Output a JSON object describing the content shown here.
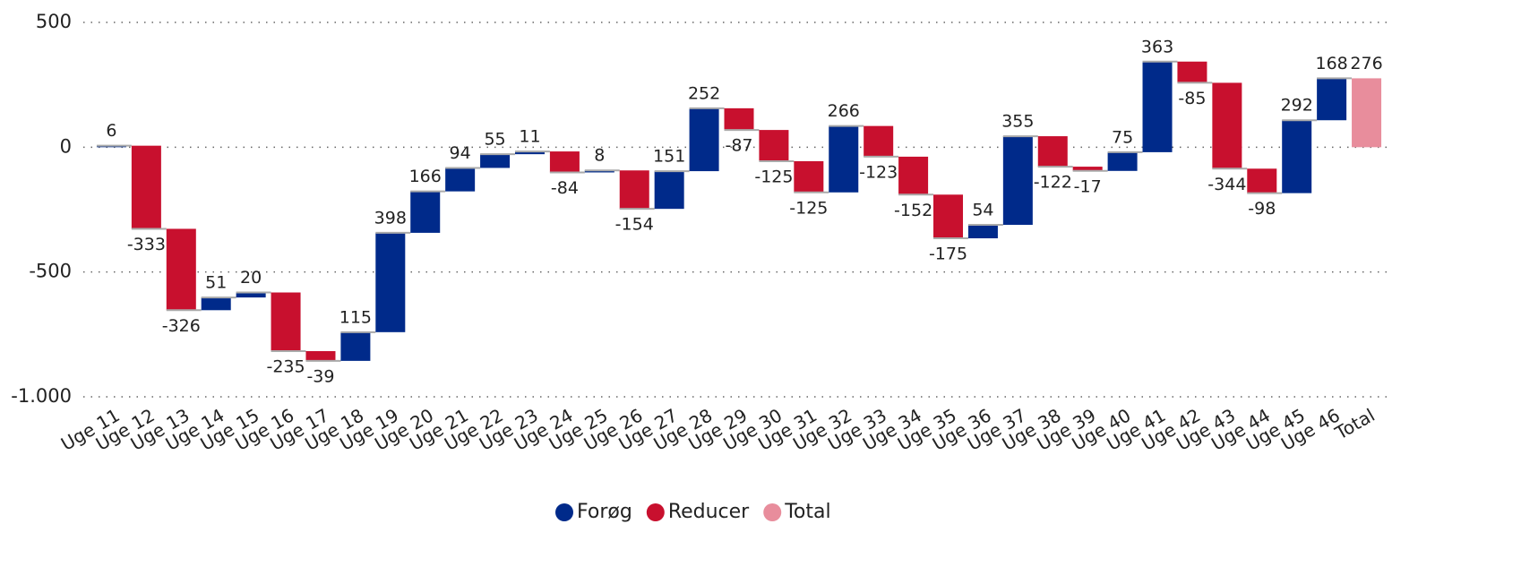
{
  "chart_data": {
    "type": "waterfall",
    "categories": [
      "Uge 11",
      "Uge 12",
      "Uge 13",
      "Uge 14",
      "Uge 15",
      "Uge 16",
      "Uge 17",
      "Uge 18",
      "Uge 19",
      "Uge 20",
      "Uge 21",
      "Uge 22",
      "Uge 23",
      "Uge 24",
      "Uge 25",
      "Uge 26",
      "Uge 27",
      "Uge 28",
      "Uge 29",
      "Uge 30",
      "Uge 31",
      "Uge 32",
      "Uge 33",
      "Uge 34",
      "Uge 35",
      "Uge 36",
      "Uge 37",
      "Uge 38",
      "Uge 39",
      "Uge 40",
      "Uge 41",
      "Uge 42",
      "Uge 43",
      "Uge 44",
      "Uge 45",
      "Uge 46",
      "Total"
    ],
    "values": [
      6,
      -333,
      -326,
      51,
      20,
      -235,
      -39,
      115,
      398,
      166,
      94,
      55,
      11,
      -84,
      8,
      -154,
      151,
      252,
      -87,
      -125,
      -125,
      266,
      -123,
      -152,
      -175,
      54,
      355,
      -122,
      -17,
      75,
      363,
      -85,
      -344,
      -98,
      292,
      168,
      276
    ],
    "total_last": true,
    "legend": [
      {
        "name": "Forøg",
        "color": "#002a8a"
      },
      {
        "name": "Reducer",
        "color": "#c8102e"
      },
      {
        "name": "Total",
        "color": "#e88d9c"
      }
    ],
    "ylim": [
      -1000,
      500
    ],
    "yticks": [
      500,
      0,
      -500,
      {
        "value": -1000,
        "label": "-1.000"
      }
    ],
    "grid": true
  }
}
